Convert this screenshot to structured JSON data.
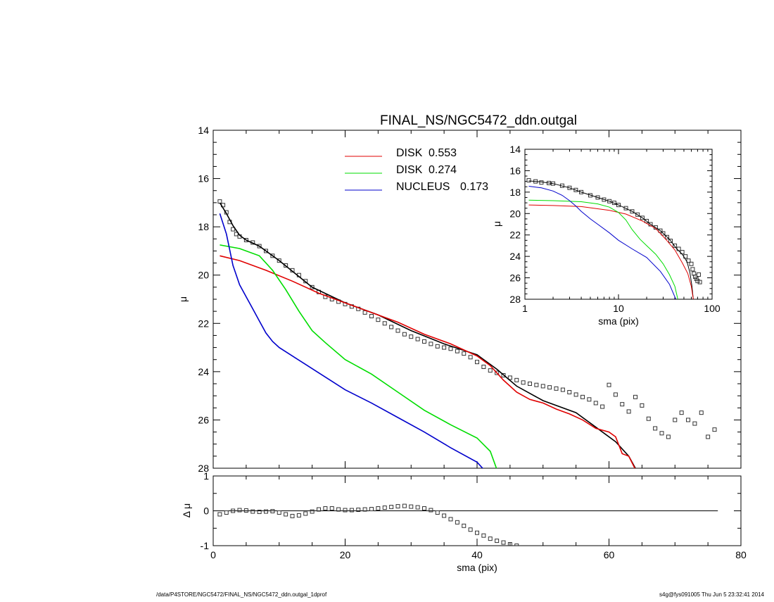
{
  "chart_data": [
    {
      "type": "line",
      "title": "FINAL_NS/NGC5472_ddn.outgal",
      "xlabel": "",
      "ylabel": "μ",
      "xlim": [
        0,
        80
      ],
      "ylim": [
        28,
        14
      ],
      "y_inverted": true,
      "x_ticks": [
        0,
        20,
        40,
        60,
        80
      ],
      "y_ticks": [
        14,
        16,
        18,
        20,
        22,
        24,
        26,
        28
      ],
      "legend": {
        "placement": "top-center",
        "entries": [
          {
            "label": "DISK",
            "value": "0.553",
            "color": "#e00000"
          },
          {
            "label": "DISK",
            "value": "0.274",
            "color": "#00dd00"
          },
          {
            "label": "NUCLEUS",
            "value": "0.173",
            "color": "#0000cc"
          }
        ]
      },
      "series": [
        {
          "role": "data",
          "color": "#333333",
          "marker": "square",
          "x": [
            1,
            1.5,
            2,
            2.5,
            3,
            3.5,
            4,
            5,
            6,
            7,
            8,
            9,
            10,
            11,
            12,
            13,
            14,
            15,
            16,
            17,
            18,
            19,
            20,
            21,
            22,
            23,
            24,
            25,
            26,
            27,
            28,
            29,
            30,
            31,
            32,
            33,
            34,
            35,
            36,
            37,
            38,
            39,
            40,
            41,
            42,
            43,
            44,
            45,
            46,
            47,
            48,
            49,
            50,
            51,
            52,
            53,
            54,
            55,
            56,
            57,
            58,
            59,
            60,
            61,
            62,
            63,
            64,
            65,
            66,
            67,
            68,
            69,
            70,
            71,
            72,
            73,
            74,
            75,
            76
          ],
          "y": [
            16.95,
            17.1,
            17.4,
            17.8,
            18.1,
            18.3,
            18.4,
            18.55,
            18.65,
            18.8,
            19.0,
            19.2,
            19.4,
            19.6,
            19.8,
            20.0,
            20.25,
            20.5,
            20.7,
            20.9,
            21.0,
            21.1,
            21.2,
            21.3,
            21.4,
            21.55,
            21.7,
            21.85,
            22.0,
            22.15,
            22.3,
            22.45,
            22.55,
            22.65,
            22.75,
            22.85,
            22.95,
            23.0,
            23.05,
            23.15,
            23.25,
            23.4,
            23.6,
            23.8,
            23.95,
            24.05,
            24.15,
            24.25,
            24.35,
            24.45,
            24.5,
            24.55,
            24.6,
            24.65,
            24.7,
            24.75,
            24.85,
            24.95,
            25.05,
            25.15,
            25.3,
            25.45,
            24.55,
            24.95,
            25.35,
            25.65,
            25.05,
            25.4,
            25.95,
            26.35,
            26.55,
            26.7,
            26.0,
            25.7,
            26.0,
            26.15,
            25.7,
            26.7,
            26.4
          ]
        },
        {
          "role": "model",
          "color": "#000000",
          "x": [
            1,
            2,
            3,
            4,
            5,
            7,
            10,
            15,
            20,
            25,
            30,
            35,
            40,
            43,
            46,
            50,
            55,
            58,
            61,
            63,
            64
          ],
          "y": [
            17.0,
            17.45,
            17.95,
            18.35,
            18.55,
            18.8,
            19.4,
            20.5,
            21.15,
            21.65,
            22.3,
            22.85,
            23.3,
            23.9,
            24.6,
            25.2,
            25.7,
            26.3,
            26.9,
            27.5,
            28.0
          ]
        },
        {
          "name": "DISK 0.553",
          "role": "component",
          "color": "#e00000",
          "x": [
            1,
            4,
            8,
            12,
            16,
            20,
            24,
            28,
            32,
            36,
            40,
            42,
            44,
            46,
            48,
            50,
            52,
            54,
            56,
            58,
            60,
            61,
            62,
            63,
            64
          ],
          "y": [
            19.2,
            19.4,
            19.8,
            20.25,
            20.75,
            21.15,
            21.55,
            21.95,
            22.45,
            22.85,
            23.35,
            23.75,
            24.35,
            24.85,
            25.15,
            25.3,
            25.55,
            25.75,
            26.0,
            26.35,
            26.5,
            26.7,
            27.4,
            27.5,
            28.05
          ]
        },
        {
          "name": "DISK 0.274",
          "role": "component",
          "color": "#00dd00",
          "x": [
            1,
            4,
            7,
            9,
            11,
            13,
            15,
            17,
            20,
            24,
            28,
            32,
            36,
            40,
            42,
            43
          ],
          "y": [
            18.75,
            18.9,
            19.2,
            19.8,
            20.6,
            21.5,
            22.3,
            22.8,
            23.5,
            24.1,
            24.85,
            25.6,
            26.2,
            26.75,
            27.3,
            28.05
          ]
        },
        {
          "name": "NUCLEUS 0.173",
          "role": "component",
          "color": "#0000cc",
          "x": [
            1,
            2,
            3,
            4,
            5,
            6,
            7,
            8,
            9,
            10,
            12,
            14,
            16,
            18,
            20,
            24,
            28,
            32,
            36,
            40,
            41
          ],
          "y": [
            17.45,
            18.3,
            19.6,
            20.4,
            20.9,
            21.4,
            21.9,
            22.4,
            22.75,
            23.0,
            23.35,
            23.7,
            24.05,
            24.4,
            24.75,
            25.3,
            25.9,
            26.5,
            27.15,
            27.75,
            28.05
          ]
        }
      ]
    },
    {
      "type": "scatter",
      "xlabel": "sma (pix)",
      "ylabel": "Δ μ",
      "xlim": [
        0,
        80
      ],
      "ylim": [
        -1,
        1
      ],
      "x_ticks": [
        0,
        20,
        40,
        60,
        80
      ],
      "y_ticks": [
        -1,
        0,
        1
      ],
      "zero_line": true,
      "series": [
        {
          "role": "residual",
          "color": "#333333",
          "marker": "square",
          "x": [
            1,
            2,
            3,
            4,
            5,
            6,
            7,
            8,
            9,
            10,
            11,
            12,
            13,
            14,
            15,
            16,
            17,
            18,
            19,
            20,
            21,
            22,
            23,
            24,
            25,
            26,
            27,
            28,
            29,
            30,
            31,
            32,
            33,
            34,
            35,
            36,
            37,
            38,
            39,
            40,
            41,
            42,
            43,
            44,
            45,
            46
          ],
          "y": [
            -0.1,
            -0.05,
            0.0,
            0.02,
            0.01,
            -0.02,
            -0.03,
            -0.02,
            -0.01,
            -0.05,
            -0.1,
            -0.15,
            -0.13,
            -0.08,
            -0.02,
            0.04,
            0.07,
            0.07,
            0.04,
            0.02,
            0.02,
            0.03,
            0.04,
            0.05,
            0.07,
            0.09,
            0.11,
            0.13,
            0.14,
            0.12,
            0.1,
            0.07,
            0.02,
            -0.05,
            -0.14,
            -0.24,
            -0.33,
            -0.43,
            -0.54,
            -0.63,
            -0.71,
            -0.8,
            -0.86,
            -0.91,
            -0.96,
            -1.0
          ]
        }
      ]
    },
    {
      "type": "line",
      "xlabel": "sma (pix)",
      "ylabel": "μ",
      "x_scale": "log",
      "xlim": [
        1,
        100
      ],
      "ylim": [
        28,
        14
      ],
      "y_inverted": true,
      "x_ticks": [
        1,
        10,
        100
      ],
      "y_ticks": [
        14,
        16,
        18,
        20,
        22,
        24,
        26,
        28
      ],
      "series": [
        {
          "role": "data",
          "color": "#333333",
          "marker": "square",
          "x": [
            1.1,
            1.3,
            1.5,
            1.8,
            2,
            2.5,
            3,
            3.5,
            4,
            5,
            6,
            7,
            8,
            9,
            10,
            12,
            14,
            16,
            18,
            20,
            22,
            25,
            28,
            30,
            33,
            36,
            40,
            44,
            48,
            52,
            56,
            60,
            62,
            64,
            66,
            68,
            70,
            72,
            74
          ],
          "y": [
            16.9,
            17.0,
            17.1,
            17.15,
            17.2,
            17.4,
            17.6,
            17.8,
            18.0,
            18.3,
            18.5,
            18.7,
            18.85,
            19.0,
            19.2,
            19.5,
            19.8,
            20.1,
            20.4,
            20.7,
            21.0,
            21.3,
            21.6,
            21.85,
            22.2,
            22.55,
            23.0,
            23.3,
            23.6,
            24.0,
            24.4,
            24.7,
            25.2,
            25.6,
            25.9,
            26.1,
            26.3,
            25.7,
            26.4
          ]
        },
        {
          "role": "model",
          "color": "#000000",
          "x": [
            1.1,
            1.5,
            2,
            3,
            4,
            6,
            8,
            10,
            14,
            18,
            22,
            28,
            35,
            42,
            48,
            54,
            58,
            61,
            63
          ],
          "y": [
            16.95,
            17.05,
            17.2,
            17.6,
            18.0,
            18.5,
            18.85,
            19.2,
            19.8,
            20.4,
            21.0,
            21.6,
            22.4,
            23.3,
            23.8,
            24.5,
            25.5,
            26.8,
            28.0
          ]
        },
        {
          "name": "DISK 0.553",
          "role": "component",
          "color": "#e00000",
          "x": [
            1.1,
            2,
            4,
            8,
            12,
            18,
            25,
            32,
            40,
            48,
            55,
            60,
            63
          ],
          "y": [
            19.2,
            19.25,
            19.35,
            19.7,
            20.05,
            20.7,
            21.4,
            22.4,
            23.4,
            24.6,
            25.6,
            26.8,
            28.0
          ]
        },
        {
          "name": "DISK 0.274",
          "role": "component",
          "color": "#00dd00",
          "x": [
            1.1,
            2,
            4,
            6,
            8,
            10,
            12,
            14,
            17,
            20,
            25,
            30,
            35,
            40,
            43
          ],
          "y": [
            18.75,
            18.8,
            18.9,
            19.1,
            19.4,
            19.9,
            20.6,
            21.5,
            22.4,
            23.0,
            23.8,
            24.7,
            25.7,
            26.8,
            28.0
          ]
        },
        {
          "name": "NUCLEUS 0.173",
          "role": "component",
          "color": "#0000cc",
          "x": [
            1.1,
            1.5,
            2,
            2.5,
            3,
            3.5,
            4,
            5,
            6,
            8,
            10,
            14,
            20,
            28,
            35,
            41
          ],
          "y": [
            17.45,
            17.6,
            17.9,
            18.3,
            18.8,
            19.3,
            19.8,
            20.5,
            21.0,
            21.8,
            22.5,
            23.3,
            24.1,
            25.4,
            26.6,
            28.0
          ]
        }
      ]
    }
  ],
  "footer": {
    "left": "/data/P4STORE/NGC5472/FINAL_NS/NGC5472_ddn.outgal_1dprof",
    "right": "s4g@fys091005  Thu Jun  5 23:32:41 2014"
  }
}
